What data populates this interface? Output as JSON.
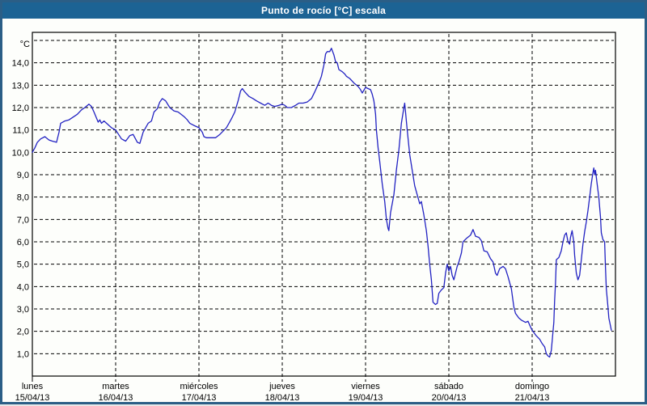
{
  "window": {
    "title": "Punto de rocío [°C] escala"
  },
  "colors": {
    "title_bar": "#1c6394",
    "title_text": "#ffffff",
    "outer_border": "#2b5e86",
    "background": "#fdfefb",
    "line": "#2222c2",
    "grid": "#000000",
    "axis": "#000000"
  },
  "chart_data": {
    "type": "line",
    "title": "Punto de rocío [°C] escala",
    "unit_label": "°C",
    "xlabel": "",
    "ylabel": "°C",
    "ylim": [
      0,
      15.4
    ],
    "grid": "dashed, 1.0 °C steps, daily vertical lines",
    "legend_position": "none",
    "y_ticks": [
      {
        "value": 1,
        "label": "1,0"
      },
      {
        "value": 2,
        "label": "2,0"
      },
      {
        "value": 3,
        "label": "3,0"
      },
      {
        "value": 4,
        "label": "4,0"
      },
      {
        "value": 5,
        "label": "5,0"
      },
      {
        "value": 6,
        "label": "6,0"
      },
      {
        "value": 7,
        "label": "7,0"
      },
      {
        "value": 8,
        "label": "8,0"
      },
      {
        "value": 9,
        "label": "9,0"
      },
      {
        "value": 10,
        "label": "10,0"
      },
      {
        "value": 11,
        "label": "11,0"
      },
      {
        "value": 12,
        "label": "12,0"
      },
      {
        "value": 13,
        "label": "13,0"
      },
      {
        "value": 14,
        "label": "14,0"
      },
      {
        "value": 15,
        "label": ""
      }
    ],
    "x_days": [
      {
        "name": "lunes",
        "date": "15/04/13"
      },
      {
        "name": "martes",
        "date": "16/04/13"
      },
      {
        "name": "miércoles",
        "date": "17/04/13"
      },
      {
        "name": "jueves",
        "date": "18/04/13"
      },
      {
        "name": "viernes",
        "date": "19/04/13"
      },
      {
        "name": "sábado",
        "date": "20/04/13"
      },
      {
        "name": "domingo",
        "date": "21/04/13"
      }
    ],
    "x_range_days": [
      0,
      7
    ],
    "series": [
      {
        "name": "Punto de rocío",
        "points": [
          [
            0,
            10.0
          ],
          [
            0.03,
            10.2
          ],
          [
            0.06,
            10.45
          ],
          [
            0.1,
            10.6
          ],
          [
            0.15,
            10.7
          ],
          [
            0.2,
            10.55
          ],
          [
            0.24,
            10.5
          ],
          [
            0.29,
            10.45
          ],
          [
            0.32,
            10.9
          ],
          [
            0.34,
            11.3
          ],
          [
            0.39,
            11.4
          ],
          [
            0.44,
            11.45
          ],
          [
            0.5,
            11.6
          ],
          [
            0.54,
            11.7
          ],
          [
            0.59,
            11.9
          ],
          [
            0.63,
            12.0
          ],
          [
            0.68,
            12.15
          ],
          [
            0.71,
            12.05
          ],
          [
            0.74,
            11.8
          ],
          [
            0.79,
            11.35
          ],
          [
            0.81,
            11.45
          ],
          [
            0.83,
            11.3
          ],
          [
            0.86,
            11.4
          ],
          [
            0.89,
            11.3
          ],
          [
            0.95,
            11.1
          ],
          [
            1.0,
            11.0
          ],
          [
            1.07,
            10.6
          ],
          [
            1.12,
            10.5
          ],
          [
            1.17,
            10.75
          ],
          [
            1.21,
            10.8
          ],
          [
            1.26,
            10.45
          ],
          [
            1.29,
            10.4
          ],
          [
            1.33,
            10.9
          ],
          [
            1.39,
            11.3
          ],
          [
            1.43,
            11.4
          ],
          [
            1.46,
            11.8
          ],
          [
            1.5,
            11.95
          ],
          [
            1.53,
            12.25
          ],
          [
            1.56,
            12.4
          ],
          [
            1.6,
            12.3
          ],
          [
            1.65,
            12.0
          ],
          [
            1.7,
            11.85
          ],
          [
            1.75,
            11.8
          ],
          [
            1.82,
            11.6
          ],
          [
            1.86,
            11.45
          ],
          [
            1.89,
            11.3
          ],
          [
            1.94,
            11.2
          ],
          [
            2.0,
            11.1
          ],
          [
            2.04,
            10.9
          ],
          [
            2.06,
            10.7
          ],
          [
            2.09,
            10.65
          ],
          [
            2.14,
            10.65
          ],
          [
            2.2,
            10.65
          ],
          [
            2.25,
            10.8
          ],
          [
            2.33,
            11.1
          ],
          [
            2.39,
            11.5
          ],
          [
            2.43,
            11.8
          ],
          [
            2.47,
            12.3
          ],
          [
            2.5,
            12.75
          ],
          [
            2.52,
            12.85
          ],
          [
            2.55,
            12.7
          ],
          [
            2.6,
            12.5
          ],
          [
            2.65,
            12.4
          ],
          [
            2.69,
            12.3
          ],
          [
            2.74,
            12.2
          ],
          [
            2.79,
            12.1
          ],
          [
            2.83,
            12.2
          ],
          [
            2.87,
            12.1
          ],
          [
            2.91,
            12.05
          ],
          [
            2.96,
            12.1
          ],
          [
            3.0,
            12.15
          ],
          [
            3.03,
            12.1
          ],
          [
            3.06,
            12.0
          ],
          [
            3.11,
            12.0
          ],
          [
            3.16,
            12.1
          ],
          [
            3.2,
            12.2
          ],
          [
            3.25,
            12.2
          ],
          [
            3.3,
            12.25
          ],
          [
            3.35,
            12.4
          ],
          [
            3.39,
            12.7
          ],
          [
            3.42,
            12.95
          ],
          [
            3.45,
            13.2
          ],
          [
            3.47,
            13.4
          ],
          [
            3.5,
            13.9
          ],
          [
            3.52,
            14.4
          ],
          [
            3.54,
            14.5
          ],
          [
            3.57,
            14.5
          ],
          [
            3.59,
            14.65
          ],
          [
            3.62,
            14.35
          ],
          [
            3.64,
            14.05
          ],
          [
            3.66,
            14.0
          ],
          [
            3.68,
            13.7
          ],
          [
            3.72,
            13.6
          ],
          [
            3.75,
            13.5
          ],
          [
            3.77,
            13.4
          ],
          [
            3.81,
            13.3
          ],
          [
            3.86,
            13.1
          ],
          [
            3.91,
            12.95
          ],
          [
            3.94,
            12.8
          ],
          [
            3.96,
            12.65
          ],
          [
            4.0,
            12.9
          ],
          [
            4.03,
            12.85
          ],
          [
            4.06,
            12.8
          ],
          [
            4.08,
            12.6
          ],
          [
            4.1,
            12.3
          ],
          [
            4.12,
            11.7
          ],
          [
            4.13,
            11.0
          ],
          [
            4.15,
            10.2
          ],
          [
            4.17,
            9.6
          ],
          [
            4.2,
            8.6
          ],
          [
            4.23,
            7.8
          ],
          [
            4.25,
            7.0
          ],
          [
            4.27,
            6.6
          ],
          [
            4.28,
            6.5
          ],
          [
            4.3,
            7.3
          ],
          [
            4.34,
            8.1
          ],
          [
            4.37,
            9.2
          ],
          [
            4.4,
            10.1
          ],
          [
            4.43,
            11.3
          ],
          [
            4.46,
            12.0
          ],
          [
            4.47,
            12.2
          ],
          [
            4.5,
            11.0
          ],
          [
            4.53,
            9.9
          ],
          [
            4.56,
            9.2
          ],
          [
            4.59,
            8.5
          ],
          [
            4.62,
            8.1
          ],
          [
            4.65,
            7.7
          ],
          [
            4.67,
            7.8
          ],
          [
            4.7,
            7.2
          ],
          [
            4.73,
            6.5
          ],
          [
            4.75,
            5.8
          ],
          [
            4.77,
            5.0
          ],
          [
            4.79,
            4.3
          ],
          [
            4.81,
            3.3
          ],
          [
            4.84,
            3.2
          ],
          [
            4.86,
            3.25
          ],
          [
            4.88,
            3.7
          ],
          [
            4.91,
            3.85
          ],
          [
            4.94,
            3.95
          ],
          [
            4.96,
            4.6
          ],
          [
            4.98,
            5.0
          ],
          [
            5.0,
            4.7
          ],
          [
            5.02,
            4.9
          ],
          [
            5.04,
            4.5
          ],
          [
            5.06,
            4.3
          ],
          [
            5.1,
            4.9
          ],
          [
            5.12,
            5.1
          ],
          [
            5.15,
            5.5
          ],
          [
            5.17,
            6.0
          ],
          [
            5.21,
            6.15
          ],
          [
            5.26,
            6.3
          ],
          [
            5.29,
            6.55
          ],
          [
            5.32,
            6.25
          ],
          [
            5.36,
            6.2
          ],
          [
            5.39,
            6.05
          ],
          [
            5.42,
            5.6
          ],
          [
            5.46,
            5.55
          ],
          [
            5.5,
            5.25
          ],
          [
            5.53,
            5.1
          ],
          [
            5.56,
            4.6
          ],
          [
            5.58,
            4.5
          ],
          [
            5.61,
            4.8
          ],
          [
            5.65,
            4.9
          ],
          [
            5.68,
            4.8
          ],
          [
            5.71,
            4.45
          ],
          [
            5.75,
            3.9
          ],
          [
            5.78,
            3.1
          ],
          [
            5.8,
            2.8
          ],
          [
            5.84,
            2.6
          ],
          [
            5.87,
            2.5
          ],
          [
            5.92,
            2.4
          ],
          [
            5.95,
            2.45
          ],
          [
            5.98,
            2.2
          ],
          [
            6.0,
            2.05
          ],
          [
            6.02,
            1.95
          ],
          [
            6.05,
            1.8
          ],
          [
            6.09,
            1.65
          ],
          [
            6.12,
            1.45
          ],
          [
            6.15,
            1.3
          ],
          [
            6.17,
            1.0
          ],
          [
            6.19,
            0.9
          ],
          [
            6.21,
            0.85
          ],
          [
            6.23,
            1.15
          ],
          [
            6.26,
            2.4
          ],
          [
            6.27,
            3.4
          ],
          [
            6.28,
            4.1
          ],
          [
            6.29,
            5.2
          ],
          [
            6.32,
            5.3
          ],
          [
            6.35,
            5.6
          ],
          [
            6.37,
            6.0
          ],
          [
            6.39,
            6.3
          ],
          [
            6.41,
            6.4
          ],
          [
            6.43,
            6.0
          ],
          [
            6.45,
            5.9
          ],
          [
            6.46,
            6.2
          ],
          [
            6.48,
            6.5
          ],
          [
            6.5,
            6.0
          ],
          [
            6.51,
            5.4
          ],
          [
            6.53,
            4.6
          ],
          [
            6.55,
            4.3
          ],
          [
            6.57,
            4.5
          ],
          [
            6.59,
            5.2
          ],
          [
            6.61,
            5.9
          ],
          [
            6.63,
            6.45
          ],
          [
            6.65,
            6.9
          ],
          [
            6.67,
            7.4
          ],
          [
            6.69,
            8.0
          ],
          [
            6.71,
            8.6
          ],
          [
            6.73,
            9.1
          ],
          [
            6.74,
            9.3
          ],
          [
            6.75,
            9.0
          ],
          [
            6.76,
            9.2
          ],
          [
            6.78,
            8.6
          ],
          [
            6.8,
            8.0
          ],
          [
            6.82,
            7.1
          ],
          [
            6.83,
            6.4
          ],
          [
            6.85,
            6.1
          ],
          [
            6.87,
            6.0
          ],
          [
            6.88,
            4.9
          ],
          [
            6.89,
            3.9
          ],
          [
            6.91,
            3.1
          ],
          [
            6.92,
            2.6
          ],
          [
            6.94,
            2.25
          ],
          [
            6.95,
            2.05
          ]
        ]
      }
    ]
  }
}
